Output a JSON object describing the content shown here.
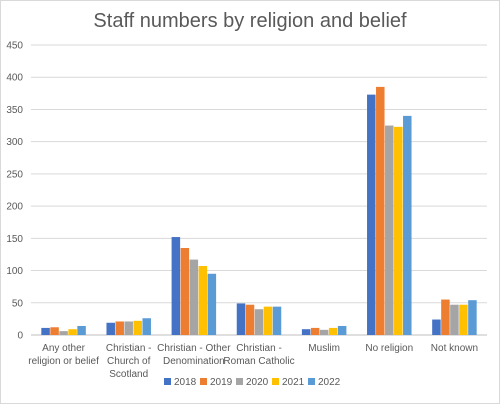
{
  "chart_data": {
    "type": "bar",
    "title": "Staff numbers by religion and belief",
    "xlabel": "",
    "ylabel": "",
    "ylim": [
      0,
      450
    ],
    "yticks": [
      0,
      50,
      100,
      150,
      200,
      250,
      300,
      350,
      400,
      450
    ],
    "grid": true,
    "legend_position": "bottom",
    "categories": [
      [
        "Any other",
        "religion or belief"
      ],
      [
        "Christian -",
        "Church of",
        "Scotland"
      ],
      [
        "Christian - Other",
        "Denomination"
      ],
      [
        "Christian -",
        "Roman Catholic"
      ],
      [
        "Muslim"
      ],
      [
        "No religion"
      ],
      [
        "Not known"
      ]
    ],
    "series": [
      {
        "name": "2018",
        "color": "#4472c4",
        "values": [
          11,
          19,
          152,
          49,
          9,
          373,
          24
        ]
      },
      {
        "name": "2019",
        "color": "#ed7d31",
        "values": [
          12,
          21,
          135,
          47,
          11,
          385,
          55
        ]
      },
      {
        "name": "2020",
        "color": "#a5a5a5",
        "values": [
          6,
          21,
          117,
          40,
          8,
          325,
          47
        ]
      },
      {
        "name": "2021",
        "color": "#ffc000",
        "values": [
          9,
          22,
          107,
          44,
          11,
          323,
          47
        ]
      },
      {
        "name": "2022",
        "color": "#5b9bd5",
        "values": [
          14,
          26,
          95,
          44,
          14,
          340,
          54
        ]
      }
    ]
  }
}
